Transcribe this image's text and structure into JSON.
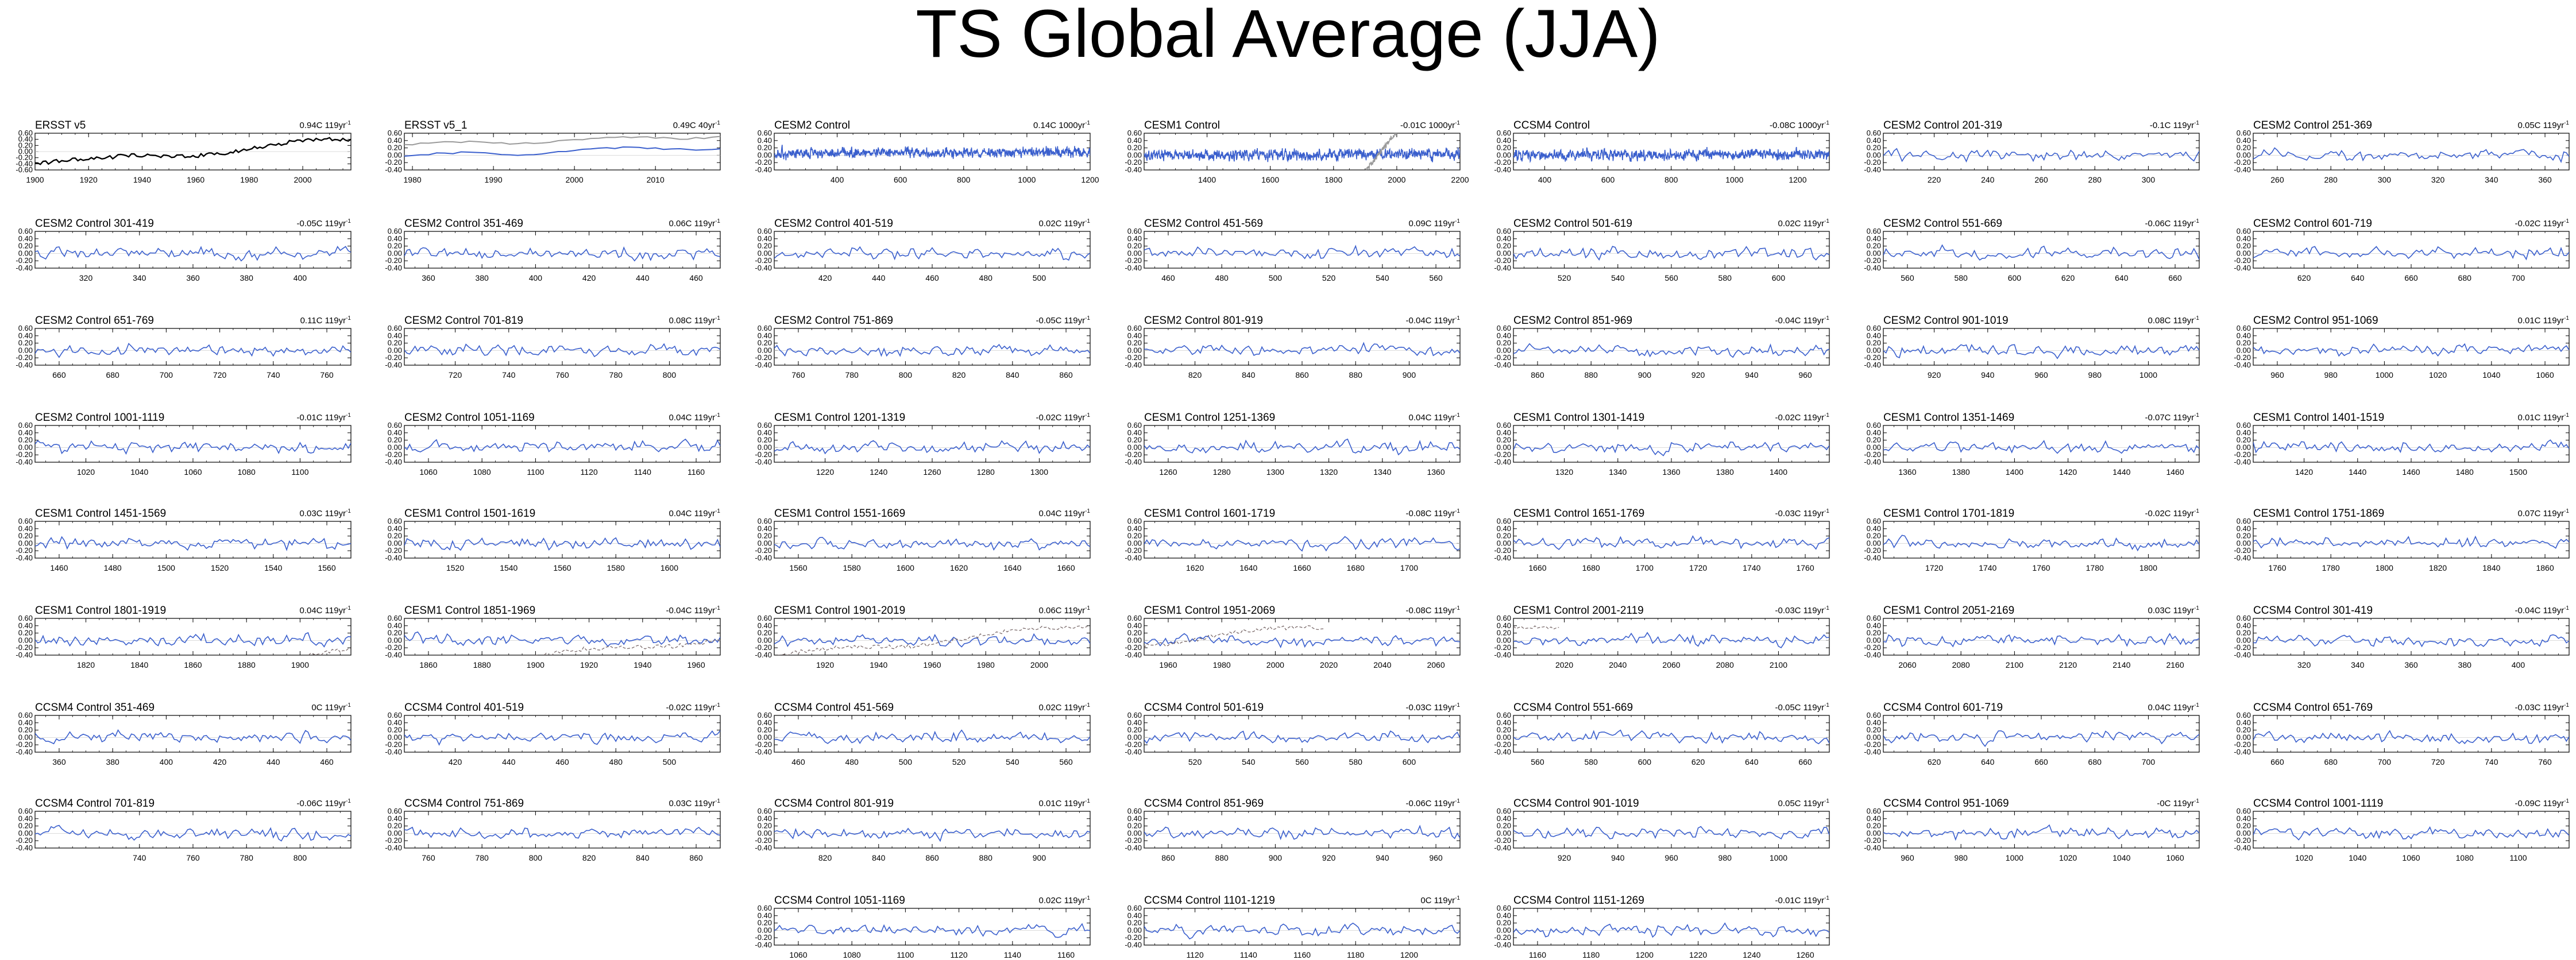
{
  "title": "TS Global Average (JJA)",
  "colors": {
    "series": "#3a5fcd",
    "obs": "#000000",
    "obs_overlay": "#9a9a9a",
    "overlay_trace": "#7a6a6a"
  },
  "y_tick_labels": [
    "0.60",
    "0.40",
    "0.20",
    "0.00",
    "-0.20",
    "-0.40"
  ],
  "y_tick_labels_obs": [
    "0.60",
    "0.40",
    "0.20",
    "0.00",
    "-0.20",
    "-0.40",
    "-0.60"
  ],
  "chart_data": [
    {
      "type": "line",
      "label": "ERSST v5",
      "trend": "0.94C 119yr",
      "xticks": [
        "1900",
        "1920",
        "1940",
        "1960",
        "1980",
        "2000"
      ],
      "x_range": [
        1900,
        2018
      ],
      "ylim": [
        -0.6,
        0.6
      ],
      "style": "obs"
    },
    {
      "type": "line",
      "label": "ERSST v5_1",
      "trend": "0.49C 40yr",
      "xticks": [
        "1980",
        "1990",
        "2000",
        "2010"
      ],
      "x_range": [
        1979,
        2018
      ],
      "ylim": [
        -0.4,
        0.6
      ],
      "style": "obs_pair"
    },
    {
      "type": "line",
      "label": "CESM2 Control",
      "trend": "0.14C 1000yr",
      "xticks": [
        "400",
        "600",
        "800",
        "1000",
        "1200"
      ],
      "x_range": [
        201,
        1200
      ],
      "ylim": [
        -0.4,
        0.6
      ],
      "style": "dense"
    },
    {
      "type": "line",
      "label": "CESM1 Control",
      "trend": "-0.01C 1000yr",
      "xticks": [
        "1400",
        "1600",
        "1800",
        "2000",
        "2200"
      ],
      "x_range": [
        1201,
        2200
      ],
      "ylim": [
        -0.4,
        0.6
      ],
      "style": "dense_obs"
    },
    {
      "type": "line",
      "label": "CCSM4 Control",
      "trend": "-0.08C 1000yr",
      "xticks": [
        "400",
        "600",
        "800",
        "1000",
        "1200"
      ],
      "x_range": [
        301,
        1300
      ],
      "ylim": [
        -0.4,
        0.6
      ],
      "style": "dense"
    },
    {
      "type": "line",
      "label": "CESM2 Control 201-319",
      "trend": "-0.1C 119yr",
      "xticks": [
        "220",
        "240",
        "260",
        "280",
        "300"
      ],
      "x_range": [
        201,
        319
      ],
      "ylim": [
        -0.4,
        0.6
      ]
    },
    {
      "type": "line",
      "label": "CESM2 Control 251-369",
      "trend": "0.05C 119yr",
      "xticks": [
        "260",
        "280",
        "300",
        "320",
        "340",
        "360"
      ],
      "x_range": [
        251,
        369
      ],
      "ylim": [
        -0.4,
        0.6
      ]
    },
    {
      "type": "line",
      "label": "CESM2 Control 301-419",
      "trend": "-0.05C 119yr",
      "xticks": [
        "320",
        "340",
        "360",
        "380",
        "400"
      ],
      "x_range": [
        301,
        419
      ],
      "ylim": [
        -0.4,
        0.6
      ]
    },
    {
      "type": "line",
      "label": "CESM2 Control 351-469",
      "trend": "0.06C 119yr",
      "xticks": [
        "360",
        "380",
        "400",
        "420",
        "440",
        "460"
      ],
      "x_range": [
        351,
        469
      ],
      "ylim": [
        -0.4,
        0.6
      ]
    },
    {
      "type": "line",
      "label": "CESM2 Control 401-519",
      "trend": "0.02C 119yr",
      "xticks": [
        "420",
        "440",
        "460",
        "480",
        "500"
      ],
      "x_range": [
        401,
        519
      ],
      "ylim": [
        -0.4,
        0.6
      ]
    },
    {
      "type": "line",
      "label": "CESM2 Control 451-569",
      "trend": "0.09C 119yr",
      "xticks": [
        "460",
        "480",
        "500",
        "520",
        "540",
        "560"
      ],
      "x_range": [
        451,
        569
      ],
      "ylim": [
        -0.4,
        0.6
      ]
    },
    {
      "type": "line",
      "label": "CESM2 Control 501-619",
      "trend": "0.02C 119yr",
      "xticks": [
        "520",
        "540",
        "560",
        "580",
        "600"
      ],
      "x_range": [
        501,
        619
      ],
      "ylim": [
        -0.4,
        0.6
      ]
    },
    {
      "type": "line",
      "label": "CESM2 Control 551-669",
      "trend": "-0.06C 119yr",
      "xticks": [
        "560",
        "580",
        "600",
        "620",
        "640",
        "660"
      ],
      "x_range": [
        551,
        669
      ],
      "ylim": [
        -0.4,
        0.6
      ]
    },
    {
      "type": "line",
      "label": "CESM2 Control 601-719",
      "trend": "-0.02C 119yr",
      "xticks": [
        "620",
        "640",
        "660",
        "680",
        "700"
      ],
      "x_range": [
        601,
        719
      ],
      "ylim": [
        -0.4,
        0.6
      ]
    },
    {
      "type": "line",
      "label": "CESM2 Control 651-769",
      "trend": "0.11C 119yr",
      "xticks": [
        "660",
        "680",
        "700",
        "720",
        "740",
        "760"
      ],
      "x_range": [
        651,
        769
      ],
      "ylim": [
        -0.4,
        0.6
      ]
    },
    {
      "type": "line",
      "label": "CESM2 Control 701-819",
      "trend": "0.08C 119yr",
      "xticks": [
        "720",
        "740",
        "760",
        "780",
        "800"
      ],
      "x_range": [
        701,
        819
      ],
      "ylim": [
        -0.4,
        0.6
      ]
    },
    {
      "type": "line",
      "label": "CESM2 Control 751-869",
      "trend": "-0.05C 119yr",
      "xticks": [
        "760",
        "780",
        "800",
        "820",
        "840",
        "860"
      ],
      "x_range": [
        751,
        869
      ],
      "ylim": [
        -0.4,
        0.6
      ]
    },
    {
      "type": "line",
      "label": "CESM2 Control 801-919",
      "trend": "-0.04C 119yr",
      "xticks": [
        "820",
        "840",
        "860",
        "880",
        "900"
      ],
      "x_range": [
        801,
        919
      ],
      "ylim": [
        -0.4,
        0.6
      ]
    },
    {
      "type": "line",
      "label": "CESM2 Control 851-969",
      "trend": "-0.04C 119yr",
      "xticks": [
        "860",
        "880",
        "900",
        "920",
        "940",
        "960"
      ],
      "x_range": [
        851,
        969
      ],
      "ylim": [
        -0.4,
        0.6
      ]
    },
    {
      "type": "line",
      "label": "CESM2 Control 901-1019",
      "trend": "0.08C 119yr",
      "xticks": [
        "920",
        "940",
        "960",
        "980",
        "1000"
      ],
      "x_range": [
        901,
        1019
      ],
      "ylim": [
        -0.4,
        0.6
      ]
    },
    {
      "type": "line",
      "label": "CESM2 Control 951-1069",
      "trend": "0.01C 119yr",
      "xticks": [
        "960",
        "980",
        "1000",
        "1020",
        "1040",
        "1060"
      ],
      "x_range": [
        951,
        1069
      ],
      "ylim": [
        -0.4,
        0.6
      ]
    },
    {
      "type": "line",
      "label": "CESM2 Control 1001-1119",
      "trend": "-0.01C 119yr",
      "xticks": [
        "1020",
        "1040",
        "1060",
        "1080",
        "1100"
      ],
      "x_range": [
        1001,
        1119
      ],
      "ylim": [
        -0.4,
        0.6
      ]
    },
    {
      "type": "line",
      "label": "CESM2 Control 1051-1169",
      "trend": "0.04C 119yr",
      "xticks": [
        "1060",
        "1080",
        "1100",
        "1120",
        "1140",
        "1160"
      ],
      "x_range": [
        1051,
        1169
      ],
      "ylim": [
        -0.4,
        0.6
      ]
    },
    {
      "type": "line",
      "label": "CESM1 Control 1201-1319",
      "trend": "-0.02C 119yr",
      "xticks": [
        "1220",
        "1240",
        "1260",
        "1280",
        "1300"
      ],
      "x_range": [
        1201,
        1319
      ],
      "ylim": [
        -0.4,
        0.6
      ]
    },
    {
      "type": "line",
      "label": "CESM1 Control 1251-1369",
      "trend": "0.04C 119yr",
      "xticks": [
        "1260",
        "1280",
        "1300",
        "1320",
        "1340",
        "1360"
      ],
      "x_range": [
        1251,
        1369
      ],
      "ylim": [
        -0.4,
        0.6
      ]
    },
    {
      "type": "line",
      "label": "CESM1 Control 1301-1419",
      "trend": "-0.02C 119yr",
      "xticks": [
        "1320",
        "1340",
        "1360",
        "1380",
        "1400"
      ],
      "x_range": [
        1301,
        1419
      ],
      "ylim": [
        -0.4,
        0.6
      ]
    },
    {
      "type": "line",
      "label": "CESM1 Control 1351-1469",
      "trend": "-0.07C 119yr",
      "xticks": [
        "1360",
        "1380",
        "1400",
        "1420",
        "1440",
        "1460"
      ],
      "x_range": [
        1351,
        1469
      ],
      "ylim": [
        -0.4,
        0.6
      ]
    },
    {
      "type": "line",
      "label": "CESM1 Control 1401-1519",
      "trend": "0.01C 119yr",
      "xticks": [
        "1420",
        "1440",
        "1460",
        "1480",
        "1500"
      ],
      "x_range": [
        1401,
        1519
      ],
      "ylim": [
        -0.4,
        0.6
      ]
    },
    {
      "type": "line",
      "label": "CESM1 Control 1451-1569",
      "trend": "0.03C 119yr",
      "xticks": [
        "1460",
        "1480",
        "1500",
        "1520",
        "1540",
        "1560"
      ],
      "x_range": [
        1451,
        1569
      ],
      "ylim": [
        -0.4,
        0.6
      ]
    },
    {
      "type": "line",
      "label": "CESM1 Control 1501-1619",
      "trend": "0.04C 119yr",
      "xticks": [
        "1520",
        "1540",
        "1560",
        "1580",
        "1600"
      ],
      "x_range": [
        1501,
        1619
      ],
      "ylim": [
        -0.4,
        0.6
      ]
    },
    {
      "type": "line",
      "label": "CESM1 Control 1551-1669",
      "trend": "0.04C 119yr",
      "xticks": [
        "1560",
        "1580",
        "1600",
        "1620",
        "1640",
        "1660"
      ],
      "x_range": [
        1551,
        1669
      ],
      "ylim": [
        -0.4,
        0.6
      ]
    },
    {
      "type": "line",
      "label": "CESM1 Control 1601-1719",
      "trend": "-0.08C 119yr",
      "xticks": [
        "1620",
        "1640",
        "1660",
        "1680",
        "1700"
      ],
      "x_range": [
        1601,
        1719
      ],
      "ylim": [
        -0.4,
        0.6
      ]
    },
    {
      "type": "line",
      "label": "CESM1 Control 1651-1769",
      "trend": "-0.03C 119yr",
      "xticks": [
        "1660",
        "1680",
        "1700",
        "1720",
        "1740",
        "1760"
      ],
      "x_range": [
        1651,
        1769
      ],
      "ylim": [
        -0.4,
        0.6
      ]
    },
    {
      "type": "line",
      "label": "CESM1 Control 1701-1819",
      "trend": "-0.02C 119yr",
      "xticks": [
        "1720",
        "1740",
        "1760",
        "1780",
        "1800"
      ],
      "x_range": [
        1701,
        1819
      ],
      "ylim": [
        -0.4,
        0.6
      ]
    },
    {
      "type": "line",
      "label": "CESM1 Control 1751-1869",
      "trend": "0.07C 119yr",
      "xticks": [
        "1760",
        "1780",
        "1800",
        "1820",
        "1840",
        "1860"
      ],
      "x_range": [
        1751,
        1869
      ],
      "ylim": [
        -0.4,
        0.6
      ]
    },
    {
      "type": "line",
      "label": "CESM1 Control 1801-1919",
      "trend": "0.04C 119yr",
      "xticks": [
        "1820",
        "1840",
        "1860",
        "1880",
        "1900"
      ],
      "x_range": [
        1801,
        1919
      ],
      "ylim": [
        -0.4,
        0.6
      ],
      "obs_overlay": true
    },
    {
      "type": "line",
      "label": "CESM1 Control 1851-1969",
      "trend": "-0.04C 119yr",
      "xticks": [
        "1860",
        "1880",
        "1900",
        "1920",
        "1940",
        "1960"
      ],
      "x_range": [
        1851,
        1969
      ],
      "ylim": [
        -0.4,
        0.6
      ],
      "obs_overlay": true
    },
    {
      "type": "line",
      "label": "CESM1 Control 1901-2019",
      "trend": "0.06C 119yr",
      "xticks": [
        "1920",
        "1940",
        "1960",
        "1980",
        "2000"
      ],
      "x_range": [
        1901,
        2019
      ],
      "ylim": [
        -0.4,
        0.6
      ],
      "obs_overlay": true
    },
    {
      "type": "line",
      "label": "CESM1 Control 1951-2069",
      "trend": "-0.08C 119yr",
      "xticks": [
        "1960",
        "1980",
        "2000",
        "2020",
        "2040",
        "2060"
      ],
      "x_range": [
        1951,
        2069
      ],
      "ylim": [
        -0.4,
        0.6
      ],
      "obs_overlay": true
    },
    {
      "type": "line",
      "label": "CESM1 Control 2001-2119",
      "trend": "-0.03C 119yr",
      "xticks": [
        "2020",
        "2040",
        "2060",
        "2080",
        "2100"
      ],
      "x_range": [
        2001,
        2119
      ],
      "ylim": [
        -0.4,
        0.6
      ],
      "obs_overlay": true
    },
    {
      "type": "line",
      "label": "CESM1 Control 2051-2169",
      "trend": "0.03C 119yr",
      "xticks": [
        "2060",
        "2080",
        "2100",
        "2120",
        "2140",
        "2160"
      ],
      "x_range": [
        2051,
        2169
      ],
      "ylim": [
        -0.4,
        0.6
      ]
    },
    {
      "type": "line",
      "label": "CCSM4 Control 301-419",
      "trend": "-0.04C 119yr",
      "xticks": [
        "320",
        "340",
        "360",
        "380",
        "400"
      ],
      "x_range": [
        301,
        419
      ],
      "ylim": [
        -0.4,
        0.6
      ]
    },
    {
      "type": "line",
      "label": "CCSM4 Control 351-469",
      "trend": "0C 119yr",
      "xticks": [
        "360",
        "380",
        "400",
        "420",
        "440",
        "460"
      ],
      "x_range": [
        351,
        469
      ],
      "ylim": [
        -0.4,
        0.6
      ]
    },
    {
      "type": "line",
      "label": "CCSM4 Control 401-519",
      "trend": "-0.02C 119yr",
      "xticks": [
        "420",
        "440",
        "460",
        "480",
        "500"
      ],
      "x_range": [
        401,
        519
      ],
      "ylim": [
        -0.4,
        0.6
      ]
    },
    {
      "type": "line",
      "label": "CCSM4 Control 451-569",
      "trend": "0.02C 119yr",
      "xticks": [
        "460",
        "480",
        "500",
        "520",
        "540",
        "560"
      ],
      "x_range": [
        451,
        569
      ],
      "ylim": [
        -0.4,
        0.6
      ]
    },
    {
      "type": "line",
      "label": "CCSM4 Control 501-619",
      "trend": "-0.03C 119yr",
      "xticks": [
        "520",
        "540",
        "560",
        "580",
        "600"
      ],
      "x_range": [
        501,
        619
      ],
      "ylim": [
        -0.4,
        0.6
      ]
    },
    {
      "type": "line",
      "label": "CCSM4 Control 551-669",
      "trend": "-0.05C 119yr",
      "xticks": [
        "560",
        "580",
        "600",
        "620",
        "640",
        "660"
      ],
      "x_range": [
        551,
        669
      ],
      "ylim": [
        -0.4,
        0.6
      ]
    },
    {
      "type": "line",
      "label": "CCSM4 Control 601-719",
      "trend": "0.04C 119yr",
      "xticks": [
        "620",
        "640",
        "660",
        "680",
        "700"
      ],
      "x_range": [
        601,
        719
      ],
      "ylim": [
        -0.4,
        0.6
      ]
    },
    {
      "type": "line",
      "label": "CCSM4 Control 651-769",
      "trend": "-0.03C 119yr",
      "xticks": [
        "660",
        "680",
        "700",
        "720",
        "740",
        "760"
      ],
      "x_range": [
        651,
        769
      ],
      "ylim": [
        -0.4,
        0.6
      ]
    },
    {
      "type": "line",
      "label": "CCSM4 Control 701-819",
      "trend": "-0.06C 119yr",
      "xticks": [
        "740",
        "760",
        "780",
        "800"
      ],
      "x_range": [
        701,
        819
      ],
      "ylim": [
        -0.4,
        0.6
      ]
    },
    {
      "type": "line",
      "label": "CCSM4 Control 751-869",
      "trend": "0.03C 119yr",
      "xticks": [
        "760",
        "780",
        "800",
        "820",
        "840",
        "860"
      ],
      "x_range": [
        751,
        869
      ],
      "ylim": [
        -0.4,
        0.6
      ]
    },
    {
      "type": "line",
      "label": "CCSM4 Control 801-919",
      "trend": "0.01C 119yr",
      "xticks": [
        "820",
        "840",
        "860",
        "880",
        "900"
      ],
      "x_range": [
        801,
        919
      ],
      "ylim": [
        -0.4,
        0.6
      ]
    },
    {
      "type": "line",
      "label": "CCSM4 Control 851-969",
      "trend": "-0.06C 119yr",
      "xticks": [
        "860",
        "880",
        "900",
        "920",
        "940",
        "960"
      ],
      "x_range": [
        851,
        969
      ],
      "ylim": [
        -0.4,
        0.6
      ]
    },
    {
      "type": "line",
      "label": "CCSM4 Control 901-1019",
      "trend": "0.05C 119yr",
      "xticks": [
        "920",
        "940",
        "960",
        "980",
        "1000"
      ],
      "x_range": [
        901,
        1019
      ],
      "ylim": [
        -0.4,
        0.6
      ]
    },
    {
      "type": "line",
      "label": "CCSM4 Control 951-1069",
      "trend": "-0C 119yr",
      "xticks": [
        "960",
        "980",
        "1000",
        "1020",
        "1040",
        "1060"
      ],
      "x_range": [
        951,
        1069
      ],
      "ylim": [
        -0.4,
        0.6
      ]
    },
    {
      "type": "line",
      "label": "CCSM4 Control 1001-1119",
      "trend": "-0.09C 119yr",
      "xticks": [
        "1020",
        "1040",
        "1060",
        "1080",
        "1100"
      ],
      "x_range": [
        1001,
        1119
      ],
      "ylim": [
        -0.4,
        0.6
      ]
    },
    {
      "type": "line",
      "label": "CCSM4 Control 1051-1169",
      "trend": "0.02C 119yr",
      "xticks": [
        "1060",
        "1080",
        "1100",
        "1120",
        "1140",
        "1160"
      ],
      "x_range": [
        1051,
        1169
      ],
      "ylim": [
        -0.4,
        0.6
      ]
    },
    {
      "type": "line",
      "label": "CCSM4 Control 1101-1219",
      "trend": "0C 119yr",
      "xticks": [
        "1120",
        "1140",
        "1160",
        "1180",
        "1200"
      ],
      "x_range": [
        1101,
        1219
      ],
      "ylim": [
        -0.4,
        0.6
      ]
    },
    {
      "type": "line",
      "label": "CCSM4 Control 1151-1269",
      "trend": "-0.01C 119yr",
      "xticks": [
        "1160",
        "1180",
        "1200",
        "1220",
        "1240",
        "1260"
      ],
      "x_range": [
        1151,
        1269
      ],
      "ylim": [
        -0.4,
        0.6
      ]
    }
  ]
}
